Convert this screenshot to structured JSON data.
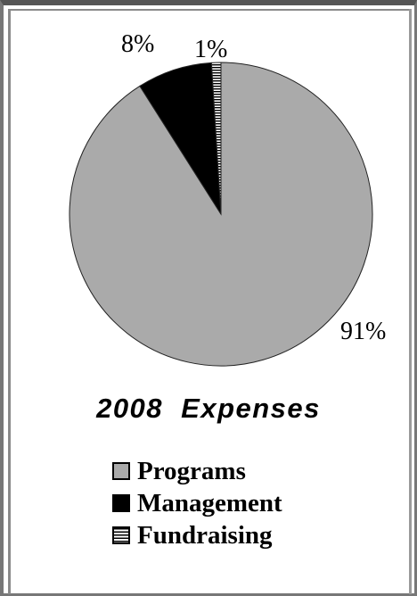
{
  "chart_data": {
    "type": "pie",
    "title": "2008 Expenses",
    "slices": [
      {
        "name": "Programs",
        "value": 91,
        "label": "91%",
        "color": "#aaaaaa"
      },
      {
        "name": "Management",
        "value": 8,
        "label": "8%",
        "color": "#000000"
      },
      {
        "name": "Fundraising",
        "value": 1,
        "label": "1%",
        "color": "#ffffff",
        "pattern": "horizontal-stripes"
      }
    ],
    "legend_placement": "bottom"
  }
}
